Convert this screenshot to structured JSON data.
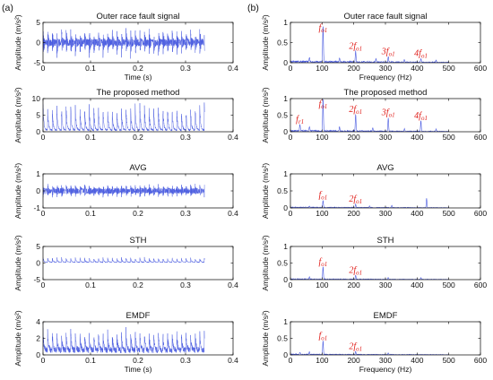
{
  "figure": {
    "left_label": "(a)",
    "right_label": "(b)"
  },
  "chart_data": [
    {
      "panel": "time-1",
      "type": "line",
      "title": "Outer race fault signal",
      "xlabel": "Time (s)",
      "ylabel": "Amplitude (m/s²)",
      "xlim": [
        0,
        0.4
      ],
      "ylim": [
        -5,
        5
      ],
      "xticks": [
        0,
        0.1,
        0.2,
        0.3,
        0.4
      ],
      "yticks": [
        -5,
        0,
        5
      ],
      "duration": 0.34,
      "signal": {
        "kind": "bipolar",
        "period": 0.0097,
        "base": 0.8,
        "peak": 3.5,
        "offset": 0
      },
      "color": "#4b5ce0",
      "annotations": []
    },
    {
      "panel": "spec-1",
      "type": "line",
      "title": "Outer race fault signal",
      "xlabel": "Frequency (Hz)",
      "ylabel": "Amplitude (m/s²)",
      "xlim": [
        0,
        600
      ],
      "ylim": [
        0,
        1
      ],
      "xticks": [
        0,
        100,
        200,
        300,
        400,
        500,
        600
      ],
      "yticks": [
        0,
        0.5,
        1
      ],
      "xmax": 500,
      "peaks": [
        [
          103,
          0.92
        ],
        [
          206,
          0.28
        ],
        [
          309,
          0.14
        ],
        [
          412,
          0.1
        ],
        [
          60,
          0.12
        ],
        [
          155,
          0.1
        ],
        [
          270,
          0.08
        ],
        [
          360,
          0.07
        ],
        [
          460,
          0.06
        ]
      ],
      "noise": 0.05,
      "color": "#4b5ce0",
      "annotations": [
        {
          "f": 103,
          "coef": "",
          "sub": "o1"
        },
        {
          "f": 206,
          "coef": "2",
          "sub": "o1"
        },
        {
          "f": 309,
          "coef": "3",
          "sub": "o1"
        },
        {
          "f": 412,
          "coef": "4",
          "sub": "o1"
        }
      ]
    },
    {
      "panel": "time-2",
      "type": "line",
      "title": "The proposed method",
      "xlabel": "",
      "ylabel": "Amplitude (m/s²)",
      "xlim": [
        0,
        0.4
      ],
      "ylim": [
        0,
        10
      ],
      "xticks": [
        0,
        0.1,
        0.2,
        0.3,
        0.4
      ],
      "yticks": [
        0,
        5,
        10
      ],
      "duration": 0.34,
      "signal": {
        "kind": "impulse",
        "period": 0.0097,
        "base": 0.6,
        "peak": 8.5,
        "offset": 0
      },
      "color": "#4b5ce0",
      "annotations": []
    },
    {
      "panel": "spec-2",
      "type": "line",
      "title": "The proposed method",
      "xlabel": "",
      "ylabel": "Amplitude (m/s²)",
      "xlim": [
        0,
        600
      ],
      "ylim": [
        0,
        1
      ],
      "xticks": [
        0,
        100,
        200,
        300,
        400,
        500,
        600
      ],
      "yticks": [
        0,
        0.5,
        1
      ],
      "xmax": 500,
      "peaks": [
        [
          103,
          0.98
        ],
        [
          206,
          0.52
        ],
        [
          309,
          0.42
        ],
        [
          412,
          0.33
        ],
        [
          30,
          0.22
        ],
        [
          60,
          0.15
        ],
        [
          155,
          0.12
        ],
        [
          260,
          0.1
        ],
        [
          360,
          0.08
        ],
        [
          460,
          0.07
        ]
      ],
      "noise": 0.05,
      "color": "#4b5ce0",
      "annotations": [
        {
          "f": 30,
          "coef": "",
          "sub": "r1"
        },
        {
          "f": 103,
          "coef": "",
          "sub": "o1"
        },
        {
          "f": 206,
          "coef": "2",
          "sub": "o1"
        },
        {
          "f": 309,
          "coef": "3",
          "sub": "o1"
        },
        {
          "f": 412,
          "coef": "4",
          "sub": "o1"
        }
      ]
    },
    {
      "panel": "time-3",
      "type": "line",
      "title": "AVG",
      "xlabel": "",
      "ylabel": "Amplitude (m/s²)",
      "xlim": [
        0,
        0.4
      ],
      "ylim": [
        -1,
        1
      ],
      "xticks": [
        0,
        0.1,
        0.2,
        0.3,
        0.4
      ],
      "yticks": [
        -1,
        0,
        1
      ],
      "duration": 0.34,
      "signal": {
        "kind": "bipolar",
        "period": 0.0097,
        "base": 0.15,
        "peak": 0.35,
        "offset": 0
      },
      "color": "#4b5ce0",
      "annotations": []
    },
    {
      "panel": "spec-3",
      "type": "line",
      "title": "AVG",
      "xlabel": "",
      "ylabel": "Amplitude (m/s²)",
      "xlim": [
        0,
        600
      ],
      "ylim": [
        0,
        1
      ],
      "xticks": [
        0,
        100,
        200,
        300,
        400,
        500,
        600
      ],
      "yticks": [
        0,
        0.5,
        1
      ],
      "xmax": 500,
      "peaks": [
        [
          103,
          0.22
        ],
        [
          206,
          0.1
        ],
        [
          320,
          0.06
        ],
        [
          430,
          0.28
        ],
        [
          60,
          0.05
        ],
        [
          250,
          0.05
        ]
      ],
      "noise": 0.03,
      "color": "#4b5ce0",
      "annotations": [
        {
          "f": 103,
          "coef": "",
          "sub": "o1"
        },
        {
          "f": 206,
          "coef": "2",
          "sub": "o1"
        }
      ]
    },
    {
      "panel": "time-4",
      "type": "line",
      "title": "STH",
      "xlabel": "",
      "ylabel": "Amplitude (m/s²)",
      "xlim": [
        0,
        0.4
      ],
      "ylim": [
        -5,
        5
      ],
      "xticks": [
        0,
        0.1,
        0.2,
        0.3,
        0.4
      ],
      "yticks": [
        -5,
        0,
        5
      ],
      "duration": 0.34,
      "signal": {
        "kind": "impulse",
        "period": 0.0097,
        "base": 0.3,
        "peak": 1.6,
        "offset": 0
      },
      "color": "#4b5ce0",
      "annotations": []
    },
    {
      "panel": "spec-4",
      "type": "line",
      "title": "STH",
      "xlabel": "",
      "ylabel": "Amplitude (m/s²)",
      "xlim": [
        0,
        600
      ],
      "ylim": [
        0,
        1
      ],
      "xticks": [
        0,
        100,
        200,
        300,
        400,
        500,
        600
      ],
      "yticks": [
        0,
        0.5,
        1
      ],
      "xmax": 500,
      "peaks": [
        [
          103,
          0.38
        ],
        [
          206,
          0.12
        ],
        [
          309,
          0.06
        ],
        [
          412,
          0.05
        ],
        [
          60,
          0.06
        ]
      ],
      "noise": 0.03,
      "color": "#4b5ce0",
      "annotations": [
        {
          "f": 103,
          "coef": "",
          "sub": "o1"
        },
        {
          "f": 206,
          "coef": "2",
          "sub": "o1"
        }
      ]
    },
    {
      "panel": "time-5",
      "type": "line",
      "title": "EMDF",
      "xlabel": "Time (s)",
      "ylabel": "Amplitude (m/s²)",
      "xlim": [
        0,
        0.4
      ],
      "ylim": [
        0,
        4
      ],
      "xticks": [
        0,
        0.1,
        0.2,
        0.3,
        0.4
      ],
      "yticks": [
        0,
        2,
        4
      ],
      "duration": 0.34,
      "signal": {
        "kind": "impulse",
        "period": 0.0097,
        "base": 0.7,
        "peak": 2.6,
        "offset": 0
      },
      "color": "#4b5ce0",
      "annotations": []
    },
    {
      "panel": "spec-5",
      "type": "line",
      "title": "EMDF",
      "xlabel": "Frequency (Hz)",
      "ylabel": "Amplitude (m/s²)",
      "xlim": [
        0,
        600
      ],
      "ylim": [
        0,
        1
      ],
      "xticks": [
        0,
        100,
        200,
        300,
        400,
        500,
        600
      ],
      "yticks": [
        0,
        0.5,
        1
      ],
      "xmax": 500,
      "peaks": [
        [
          103,
          0.42
        ],
        [
          206,
          0.1
        ],
        [
          309,
          0.05
        ],
        [
          60,
          0.08
        ],
        [
          30,
          0.06
        ]
      ],
      "noise": 0.03,
      "color": "#4b5ce0",
      "annotations": [
        {
          "f": 103,
          "coef": "",
          "sub": "o1"
        },
        {
          "f": 206,
          "coef": "2",
          "sub": "o1"
        }
      ]
    }
  ]
}
